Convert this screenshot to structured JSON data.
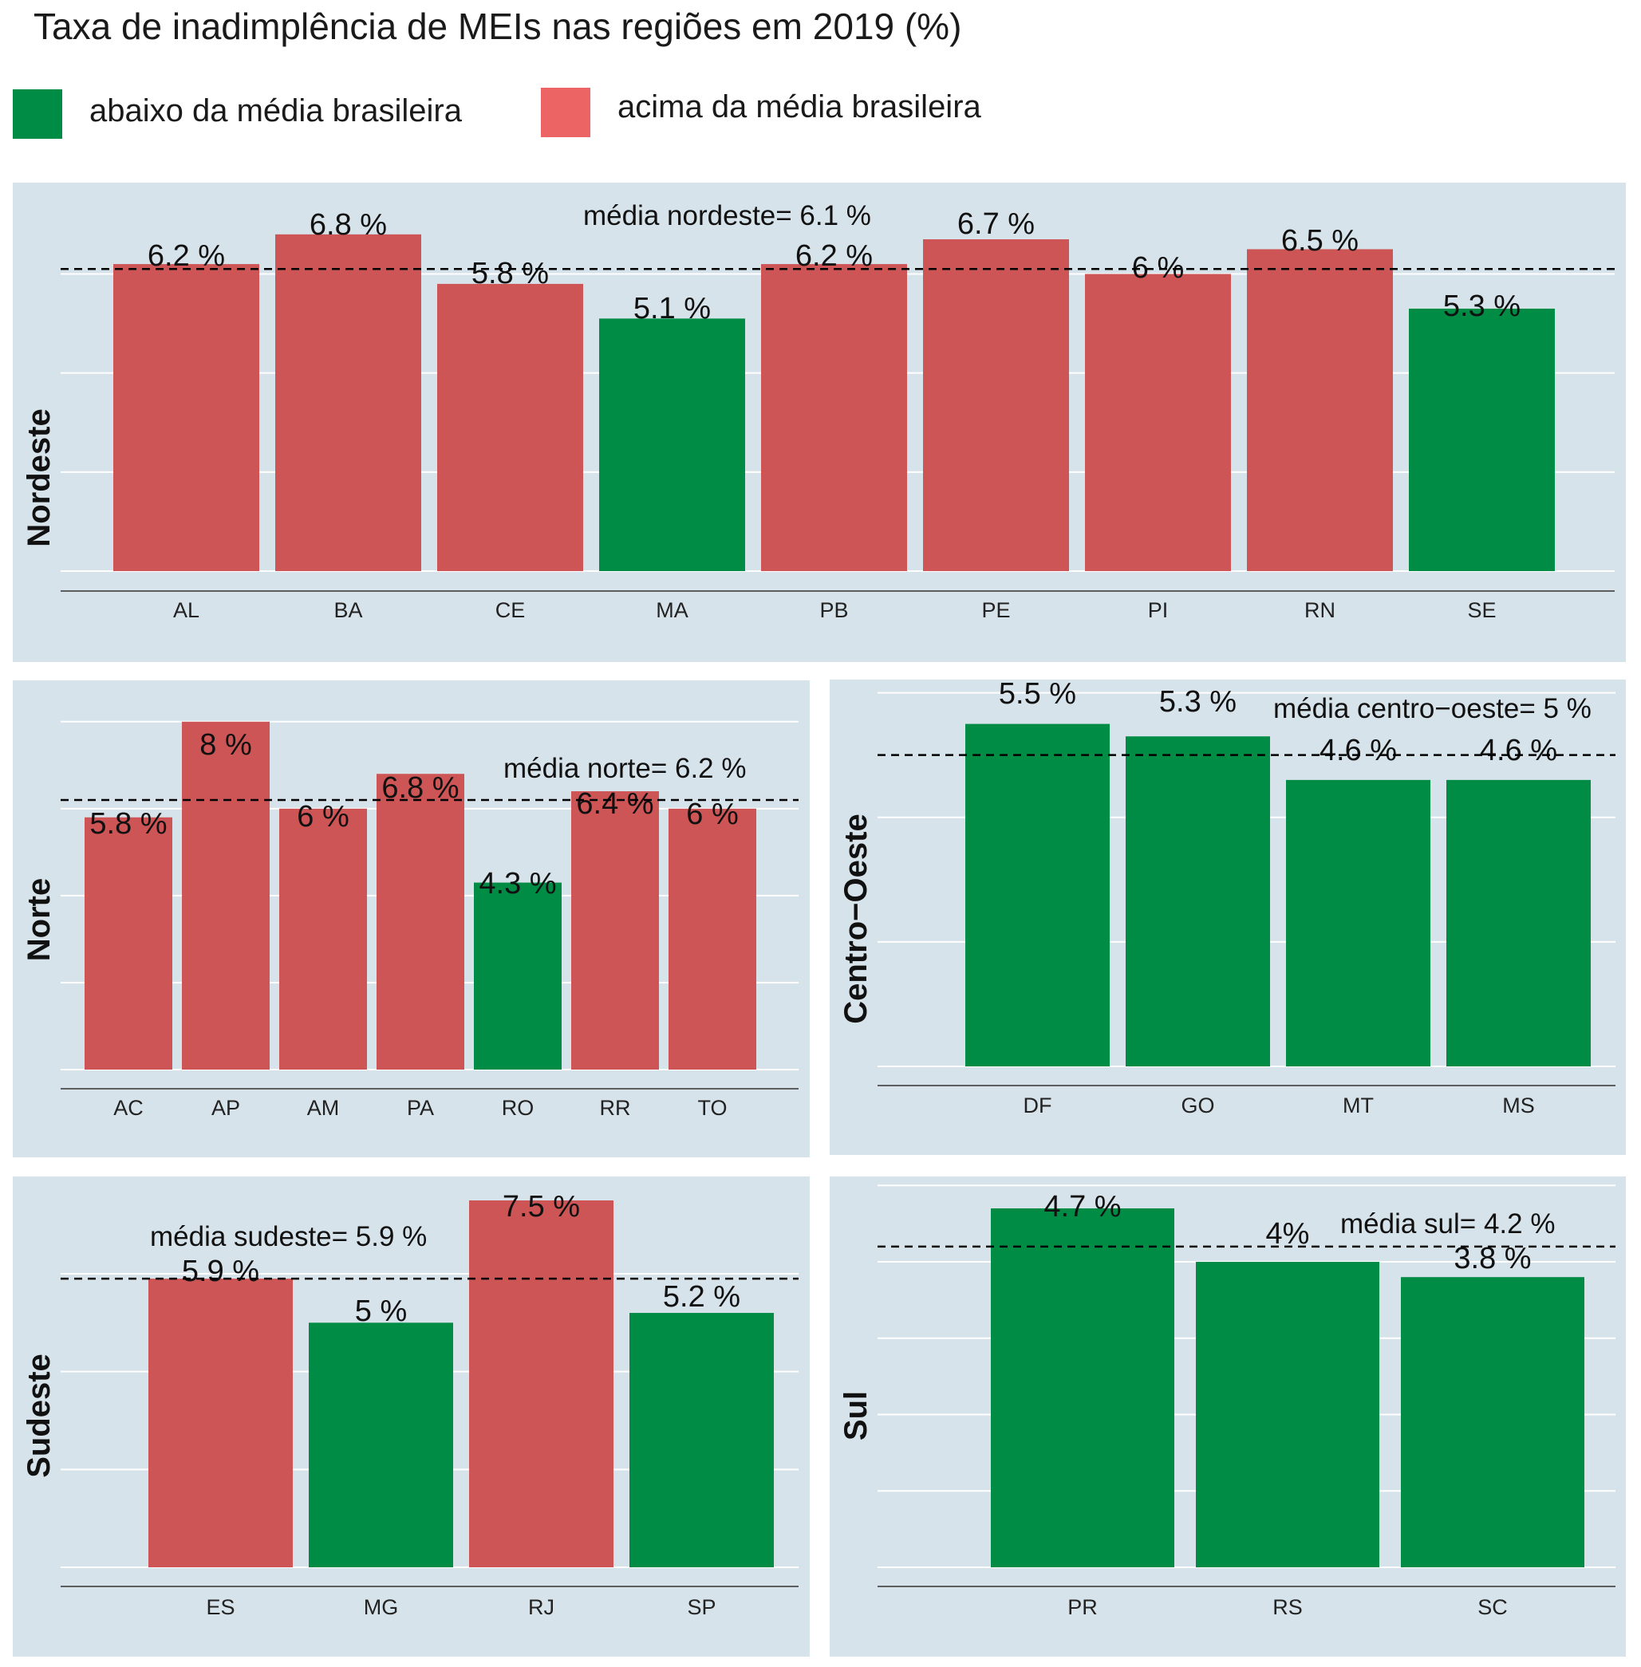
{
  "title": "Taxa de inadimplência de MEIs nas regiões em 2019 (%)",
  "legend": [
    {
      "label": "abaixo da média brasileira",
      "color": "#008c45"
    },
    {
      "label": "acima da média brasileira",
      "color": "#ec6464"
    }
  ],
  "colors": {
    "below": "#008c45",
    "above": "#cd5555",
    "panel_bg": "#d7e3ea"
  },
  "chart_data": [
    {
      "type": "bar",
      "region": "Nordeste",
      "categories": [
        "AL",
        "BA",
        "CE",
        "MA",
        "PB",
        "PE",
        "PI",
        "RN",
        "SE"
      ],
      "values": [
        6.2,
        6.8,
        5.8,
        5.1,
        6.2,
        6.7,
        6.0,
        6.5,
        5.3
      ],
      "labels": [
        "6.2 %",
        "6.8 %",
        "5.8 %",
        "5.1 %",
        "6.2 %",
        "6.7 %",
        "6 %",
        "6.5 %",
        "5.3 %"
      ],
      "status": [
        "above",
        "above",
        "above",
        "below",
        "above",
        "above",
        "above",
        "above",
        "below"
      ],
      "mean": 6.1,
      "mean_label": "média nordeste=  6.1 %"
    },
    {
      "type": "bar",
      "region": "Norte",
      "categories": [
        "AC",
        "AP",
        "AM",
        "PA",
        "RO",
        "RR",
        "TO"
      ],
      "values": [
        5.8,
        8.0,
        6.0,
        6.8,
        4.3,
        6.4,
        6.0
      ],
      "labels": [
        "5.8 %",
        "8 %",
        "6 %",
        "6.8 %",
        "4.3 %",
        "6.4 %",
        "6 %"
      ],
      "status": [
        "above",
        "above",
        "above",
        "above",
        "below",
        "above",
        "above"
      ],
      "mean": 6.2,
      "mean_label": "média norte=  6.2 %"
    },
    {
      "type": "bar",
      "region": "Centro−Oeste",
      "categories": [
        "DF",
        "GO",
        "MT",
        "MS"
      ],
      "values": [
        5.5,
        5.3,
        4.6,
        4.6
      ],
      "labels": [
        "5.5 %",
        "5.3 %",
        "4.6 %",
        "4.6 %"
      ],
      "status": [
        "below",
        "below",
        "below",
        "below"
      ],
      "mean": 5.0,
      "mean_label": "média centro−oeste=  5 %"
    },
    {
      "type": "bar",
      "region": "Sudeste",
      "categories": [
        "ES",
        "MG",
        "RJ",
        "SP"
      ],
      "values": [
        5.9,
        5.0,
        7.5,
        5.2
      ],
      "labels": [
        "5.9 %",
        "5 %",
        "7.5 %",
        "5.2 %"
      ],
      "status": [
        "above",
        "below",
        "above",
        "below"
      ],
      "mean": 5.9,
      "mean_label": "média sudeste=  5.9 %"
    },
    {
      "type": "bar",
      "region": "Sul",
      "categories": [
        "PR",
        "RS",
        "SC"
      ],
      "values": [
        4.7,
        4.0,
        3.8
      ],
      "labels": [
        "4.7 %",
        "4%",
        "3.8 %"
      ],
      "status": [
        "below",
        "below",
        "below"
      ],
      "mean": 4.2,
      "mean_label": "média sul=  4.2 %"
    }
  ]
}
